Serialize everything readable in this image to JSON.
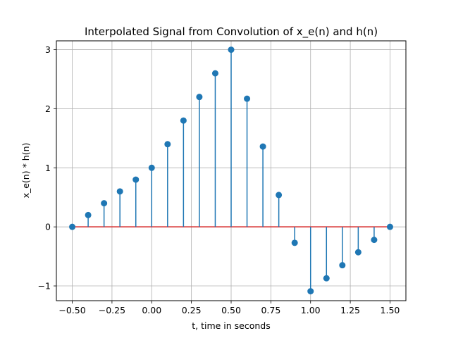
{
  "chart_data": {
    "type": "stem",
    "title": "Interpolated Signal from Convolution of x_e(n) and h(n)",
    "xlabel": "t, time in seconds",
    "ylabel": "x_e(n) * h(n)",
    "xlim": [
      -0.6,
      1.6
    ],
    "ylim": [
      -1.25,
      3.15
    ],
    "xticks": [
      -0.5,
      -0.25,
      0.0,
      0.25,
      0.5,
      0.75,
      1.0,
      1.25,
      1.5
    ],
    "xtick_labels": [
      "−0.50",
      "−0.25",
      "0.00",
      "0.25",
      "0.50",
      "0.75",
      "1.00",
      "1.25",
      "1.50"
    ],
    "yticks": [
      -1,
      0,
      1,
      2,
      3
    ],
    "ytick_labels": [
      "−1",
      "0",
      "1",
      "2",
      "3"
    ],
    "grid": true,
    "color": "#1f77b4",
    "x": [
      -0.5,
      -0.4,
      -0.3,
      -0.2,
      -0.1,
      0.0,
      0.1,
      0.2,
      0.3,
      0.4,
      0.5,
      0.6,
      0.7,
      0.8,
      0.9,
      1.0,
      1.1,
      1.2,
      1.3,
      1.4,
      1.5
    ],
    "y": [
      0.0,
      0.2,
      0.4,
      0.6,
      0.8,
      1.0,
      1.4,
      1.8,
      2.2,
      2.6,
      3.0,
      2.17,
      1.36,
      0.54,
      -0.27,
      -1.09,
      -0.87,
      -0.65,
      -0.43,
      -0.22,
      0.0
    ]
  }
}
